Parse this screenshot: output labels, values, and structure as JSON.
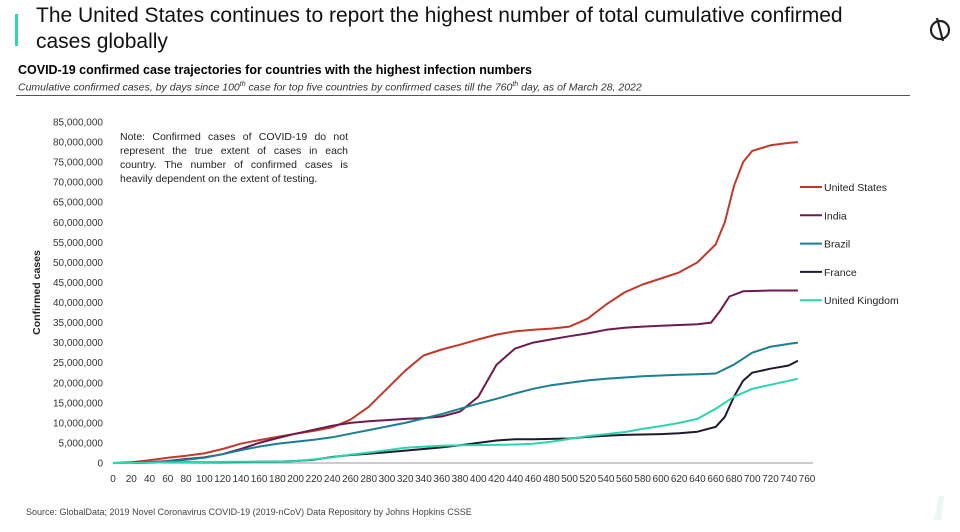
{
  "header": {
    "title": "The United States continues to report the highest number of total cumulative confirmed cases globally",
    "subtitle": "COVID-19 confirmed case trajectories for countries with the highest infection numbers",
    "description_parts": [
      "Cumulative confirmed cases, by days since 100",
      "th",
      " case for top five countries by confirmed cases till the 760",
      "th",
      " day, as of March 28, 2022"
    ],
    "accent_color": "#2bd6b4"
  },
  "logo": {
    "icon": "globaldata-logo-icon"
  },
  "note": "Note: Confirmed cases of COVID-19 do not represent the true extent of cases in each country. The number of confirmed cases is heavily dependent on the extent of testing.",
  "source": "Source: GlobalData; 2019 Novel Coronavirus COVID-19 (2019-nCoV) Data Repository by Johns Hopkins CSSE",
  "chart_data": {
    "type": "line",
    "title": "",
    "xlabel": "",
    "ylabel": "Confirmed cases",
    "xlim": [
      0,
      760
    ],
    "ylim": [
      0,
      85000000
    ],
    "x_ticks": [
      0,
      20,
      40,
      60,
      80,
      100,
      120,
      140,
      160,
      180,
      200,
      220,
      240,
      260,
      280,
      300,
      320,
      340,
      360,
      380,
      400,
      420,
      440,
      460,
      480,
      500,
      520,
      540,
      560,
      580,
      600,
      620,
      640,
      660,
      680,
      700,
      720,
      740,
      760
    ],
    "x_tick_labels": [
      "0",
      "20",
      "40",
      "60",
      "80",
      "100",
      "120",
      "140",
      "160",
      "180",
      "200",
      "220",
      "240",
      "260",
      "280",
      "300",
      "320",
      "340",
      "360",
      "380",
      "400",
      "420",
      "440",
      "460",
      "480",
      "500",
      "520",
      "540",
      "560",
      "580",
      "600",
      "620",
      "640",
      "660",
      "680",
      "700",
      "720",
      "740",
      "760"
    ],
    "y_ticks": [
      0,
      5000000,
      10000000,
      15000000,
      20000000,
      25000000,
      30000000,
      35000000,
      40000000,
      45000000,
      50000000,
      55000000,
      60000000,
      65000000,
      70000000,
      75000000,
      80000000,
      85000000
    ],
    "y_tick_labels": [
      "0",
      "5,000,000",
      "10,000,000",
      "15,000,000",
      "20,000,000",
      "25,000,000",
      "30,000,000",
      "35,000,000",
      "40,000,000",
      "45,000,000",
      "50,000,000",
      "55,000,000",
      "60,000,000",
      "65,000,000",
      "70,000,000",
      "75,000,000",
      "80,000,000",
      "85,000,000"
    ],
    "grid": false,
    "legend_position": "right",
    "series": [
      {
        "name": "United States",
        "color": "#c0392b",
        "points": [
          [
            0,
            0
          ],
          [
            20,
            200000
          ],
          [
            40,
            700000
          ],
          [
            60,
            1300000
          ],
          [
            80,
            1800000
          ],
          [
            100,
            2400000
          ],
          [
            120,
            3500000
          ],
          [
            140,
            4800000
          ],
          [
            160,
            5700000
          ],
          [
            180,
            6500000
          ],
          [
            200,
            7300000
          ],
          [
            220,
            8000000
          ],
          [
            240,
            8900000
          ],
          [
            260,
            10800000
          ],
          [
            280,
            14000000
          ],
          [
            300,
            18500000
          ],
          [
            320,
            23000000
          ],
          [
            340,
            26800000
          ],
          [
            360,
            28300000
          ],
          [
            380,
            29500000
          ],
          [
            400,
            30800000
          ],
          [
            420,
            32000000
          ],
          [
            440,
            32800000
          ],
          [
            460,
            33200000
          ],
          [
            480,
            33500000
          ],
          [
            500,
            34000000
          ],
          [
            520,
            36000000
          ],
          [
            540,
            39500000
          ],
          [
            560,
            42500000
          ],
          [
            580,
            44500000
          ],
          [
            600,
            46000000
          ],
          [
            620,
            47500000
          ],
          [
            640,
            50000000
          ],
          [
            660,
            54500000
          ],
          [
            670,
            60000000
          ],
          [
            680,
            69000000
          ],
          [
            690,
            75000000
          ],
          [
            700,
            77800000
          ],
          [
            720,
            79200000
          ],
          [
            740,
            79800000
          ],
          [
            750,
            80000000
          ]
        ]
      },
      {
        "name": "India",
        "color": "#6d1b4f",
        "points": [
          [
            0,
            0
          ],
          [
            20,
            100
          ],
          [
            40,
            200000
          ],
          [
            60,
            500000
          ],
          [
            80,
            1000000
          ],
          [
            100,
            1400000
          ],
          [
            120,
            2200000
          ],
          [
            140,
            3500000
          ],
          [
            160,
            5000000
          ],
          [
            180,
            6200000
          ],
          [
            200,
            7300000
          ],
          [
            220,
            8300000
          ],
          [
            240,
            9300000
          ],
          [
            260,
            10000000
          ],
          [
            280,
            10400000
          ],
          [
            300,
            10700000
          ],
          [
            320,
            11000000
          ],
          [
            340,
            11200000
          ],
          [
            360,
            11600000
          ],
          [
            380,
            12800000
          ],
          [
            400,
            16500000
          ],
          [
            420,
            24500000
          ],
          [
            440,
            28500000
          ],
          [
            460,
            30000000
          ],
          [
            480,
            30800000
          ],
          [
            500,
            31600000
          ],
          [
            520,
            32300000
          ],
          [
            540,
            33200000
          ],
          [
            560,
            33700000
          ],
          [
            580,
            34000000
          ],
          [
            600,
            34200000
          ],
          [
            620,
            34400000
          ],
          [
            640,
            34600000
          ],
          [
            655,
            35000000
          ],
          [
            665,
            38000000
          ],
          [
            675,
            41500000
          ],
          [
            690,
            42800000
          ],
          [
            720,
            43000000
          ],
          [
            750,
            43000000
          ]
        ]
      },
      {
        "name": "Brazil",
        "color": "#1a7f8e",
        "points": [
          [
            0,
            0
          ],
          [
            20,
            100
          ],
          [
            40,
            200000
          ],
          [
            60,
            400000
          ],
          [
            80,
            800000
          ],
          [
            100,
            1300000
          ],
          [
            120,
            2200000
          ],
          [
            140,
            3200000
          ],
          [
            160,
            4100000
          ],
          [
            180,
            4800000
          ],
          [
            200,
            5300000
          ],
          [
            220,
            5800000
          ],
          [
            240,
            6400000
          ],
          [
            260,
            7300000
          ],
          [
            280,
            8200000
          ],
          [
            300,
            9100000
          ],
          [
            320,
            10000000
          ],
          [
            340,
            11100000
          ],
          [
            360,
            12200000
          ],
          [
            380,
            13500000
          ],
          [
            400,
            14800000
          ],
          [
            420,
            16000000
          ],
          [
            440,
            17300000
          ],
          [
            460,
            18500000
          ],
          [
            480,
            19400000
          ],
          [
            500,
            20000000
          ],
          [
            520,
            20600000
          ],
          [
            540,
            21000000
          ],
          [
            560,
            21300000
          ],
          [
            580,
            21600000
          ],
          [
            600,
            21800000
          ],
          [
            620,
            22000000
          ],
          [
            640,
            22100000
          ],
          [
            660,
            22300000
          ],
          [
            680,
            24500000
          ],
          [
            700,
            27500000
          ],
          [
            720,
            29000000
          ],
          [
            740,
            29700000
          ],
          [
            750,
            30000000
          ]
        ]
      },
      {
        "name": "France",
        "color": "#1f1a2e",
        "points": [
          [
            0,
            0
          ],
          [
            20,
            100
          ],
          [
            40,
            100000
          ],
          [
            60,
            150000
          ],
          [
            80,
            180000
          ],
          [
            100,
            190000
          ],
          [
            120,
            200000
          ],
          [
            140,
            250000
          ],
          [
            160,
            300000
          ],
          [
            180,
            350000
          ],
          [
            200,
            500000
          ],
          [
            220,
            800000
          ],
          [
            240,
            1500000
          ],
          [
            260,
            2000000
          ],
          [
            280,
            2300000
          ],
          [
            300,
            2700000
          ],
          [
            320,
            3100000
          ],
          [
            340,
            3500000
          ],
          [
            360,
            3900000
          ],
          [
            380,
            4400000
          ],
          [
            400,
            5000000
          ],
          [
            420,
            5600000
          ],
          [
            440,
            5900000
          ],
          [
            460,
            5900000
          ],
          [
            480,
            6000000
          ],
          [
            500,
            6100000
          ],
          [
            520,
            6500000
          ],
          [
            540,
            6800000
          ],
          [
            560,
            7000000
          ],
          [
            580,
            7100000
          ],
          [
            600,
            7200000
          ],
          [
            620,
            7400000
          ],
          [
            640,
            7800000
          ],
          [
            660,
            9000000
          ],
          [
            670,
            11500000
          ],
          [
            680,
            16500000
          ],
          [
            690,
            20500000
          ],
          [
            700,
            22500000
          ],
          [
            720,
            23500000
          ],
          [
            740,
            24300000
          ],
          [
            750,
            25500000
          ]
        ]
      },
      {
        "name": "United Kingdom",
        "color": "#2ad6b0",
        "points": [
          [
            0,
            0
          ],
          [
            20,
            100
          ],
          [
            40,
            100000
          ],
          [
            60,
            150000
          ],
          [
            80,
            200000
          ],
          [
            100,
            250000
          ],
          [
            120,
            280000
          ],
          [
            140,
            300000
          ],
          [
            160,
            330000
          ],
          [
            180,
            350000
          ],
          [
            200,
            500000
          ],
          [
            220,
            900000
          ],
          [
            240,
            1400000
          ],
          [
            260,
            2100000
          ],
          [
            280,
            2600000
          ],
          [
            300,
            3200000
          ],
          [
            320,
            3800000
          ],
          [
            340,
            4100000
          ],
          [
            360,
            4300000
          ],
          [
            380,
            4400000
          ],
          [
            400,
            4450000
          ],
          [
            420,
            4500000
          ],
          [
            440,
            4600000
          ],
          [
            460,
            4800000
          ],
          [
            480,
            5300000
          ],
          [
            500,
            6000000
          ],
          [
            520,
            6700000
          ],
          [
            540,
            7200000
          ],
          [
            560,
            7700000
          ],
          [
            580,
            8500000
          ],
          [
            600,
            9200000
          ],
          [
            620,
            10000000
          ],
          [
            640,
            11000000
          ],
          [
            660,
            13500000
          ],
          [
            670,
            15000000
          ],
          [
            680,
            16500000
          ],
          [
            700,
            18500000
          ],
          [
            720,
            19500000
          ],
          [
            740,
            20500000
          ],
          [
            750,
            21000000
          ]
        ]
      }
    ]
  }
}
